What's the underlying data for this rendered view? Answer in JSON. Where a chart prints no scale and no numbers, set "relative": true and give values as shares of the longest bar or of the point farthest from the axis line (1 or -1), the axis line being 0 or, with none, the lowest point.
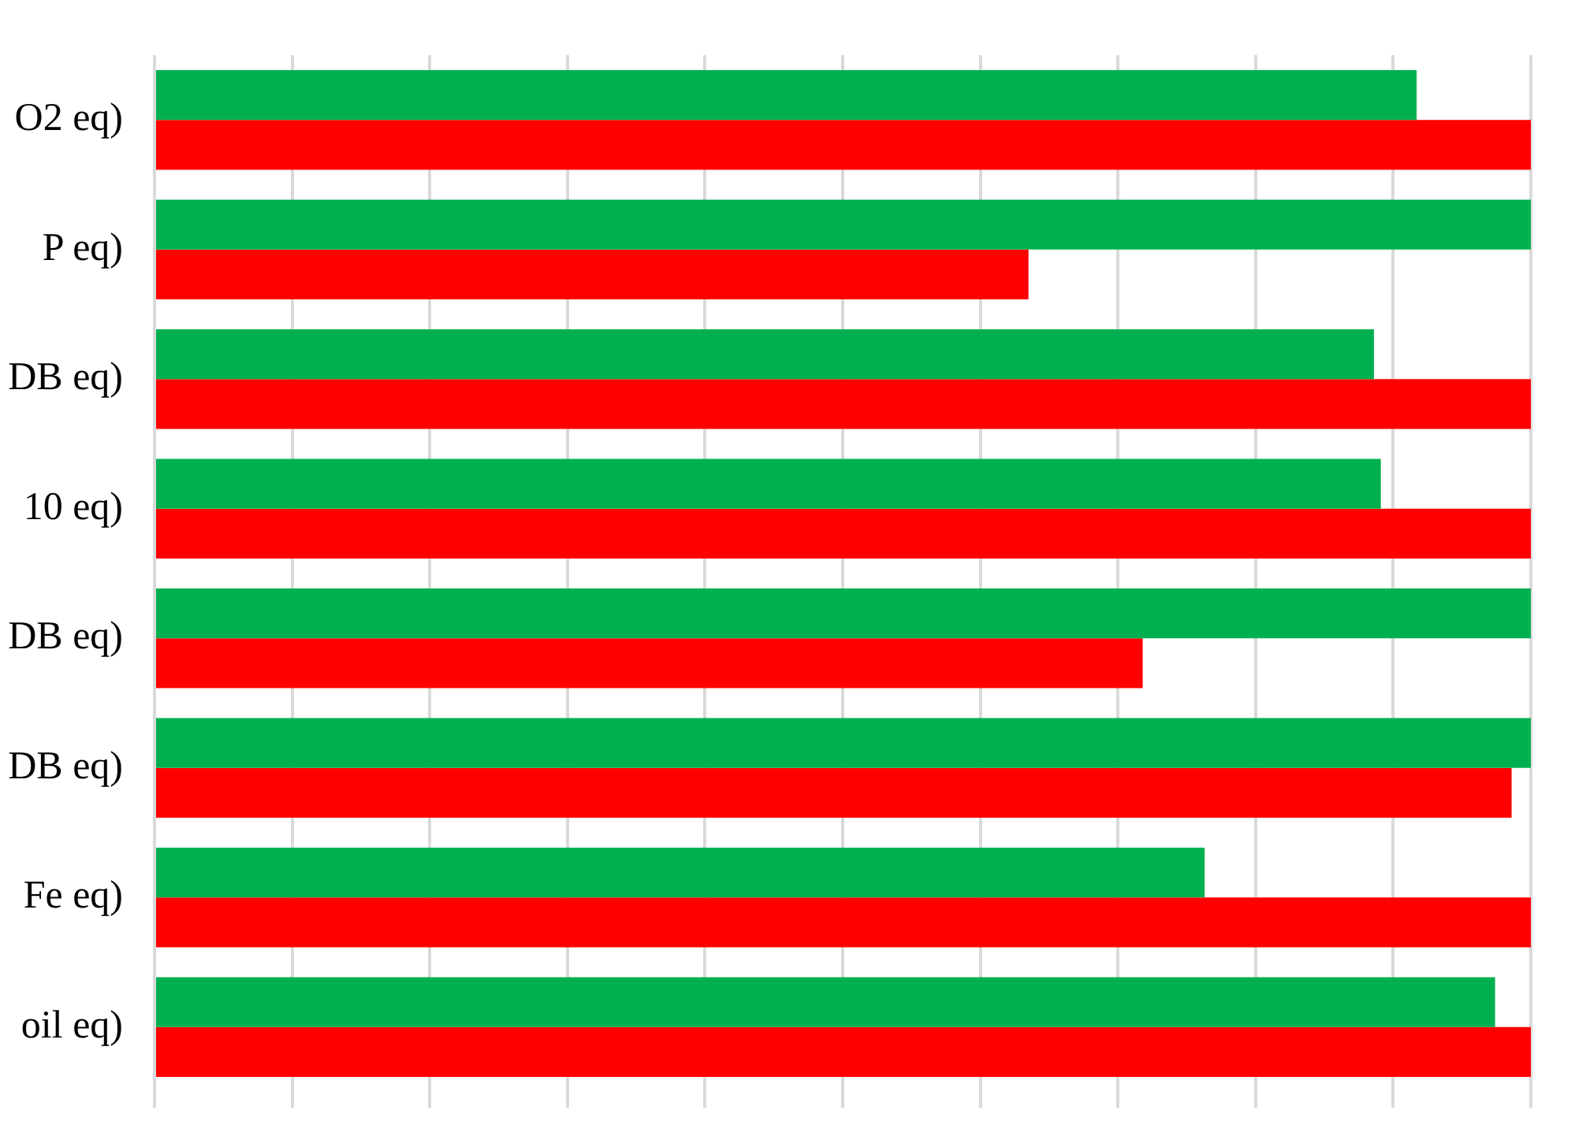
{
  "chart_data": {
    "type": "bar",
    "orientation": "horizontal",
    "relative": true,
    "grid": "x",
    "legend": false,
    "categories": [
      "O2 eq)",
      "P eq)",
      "DB eq)",
      "10 eq)",
      "DB eq)",
      "DB eq)",
      "Fe eq)",
      "oil eq)"
    ],
    "series": [
      {
        "color": "#00b050",
        "values": [
          0.917,
          1,
          0.886,
          0.891,
          1,
          1,
          0.763,
          0.974
        ]
      },
      {
        "color": "#ff0000",
        "values": [
          1,
          0.635,
          1,
          1,
          0.718,
          0.986,
          1,
          1
        ]
      }
    ]
  }
}
